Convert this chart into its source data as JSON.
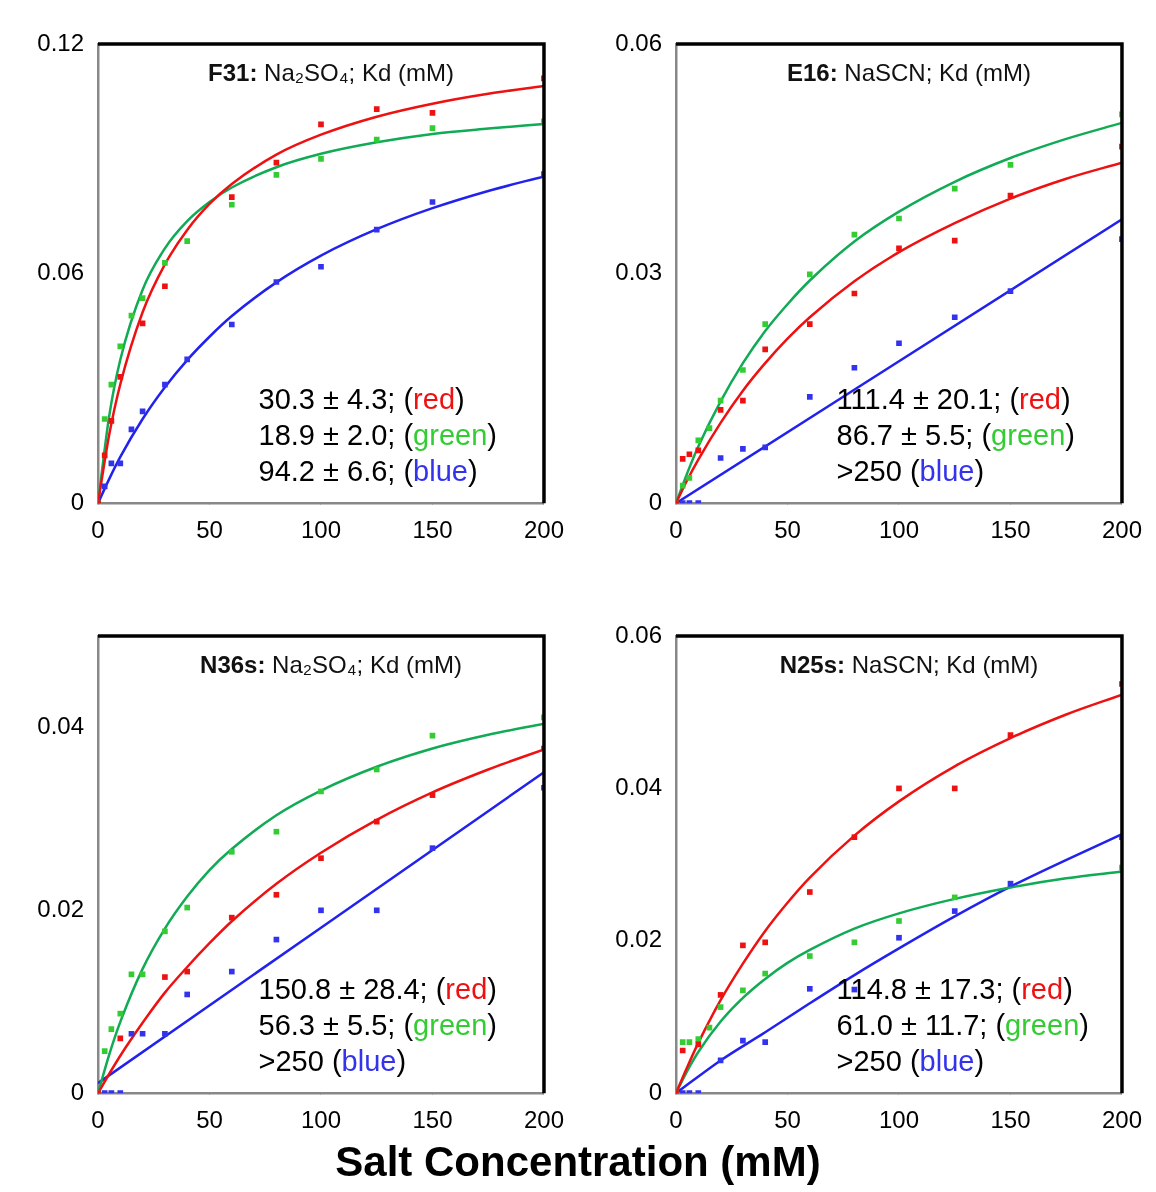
{
  "chart_data": [
    {
      "type": "scatter",
      "title": "F31: Na₂SO₄; Kd (mM)",
      "xlim": [
        0,
        200
      ],
      "xticks": [
        0,
        50,
        100,
        150,
        200
      ],
      "ylim": [
        0,
        0.12
      ],
      "yticks": [
        0,
        0.06,
        0.12
      ],
      "grid": false,
      "legend": false,
      "x": [
        0,
        3,
        6,
        10,
        15,
        20,
        30,
        40,
        60,
        80,
        100,
        125,
        150,
        200
      ],
      "annotations": [
        "30.3 ± 4.3; (red)",
        "18.9 ± 2.0; (green)",
        "94.2 ± 6.6; (blue)"
      ],
      "series": [
        {
          "type": "line",
          "color": "#ee1111",
          "marker": "none",
          "x": [
            0,
            5,
            10,
            20,
            30,
            40,
            50,
            60,
            80,
            100,
            125,
            150,
            175,
            200
          ],
          "values": [
            0,
            0.0178,
            0.0311,
            0.0499,
            0.0624,
            0.0714,
            0.0782,
            0.0834,
            0.0911,
            0.0963,
            0.101,
            0.1044,
            0.107,
            0.109
          ]
        },
        {
          "type": "line",
          "color": "#11aa55",
          "marker": "none",
          "x": [
            0,
            5,
            10,
            20,
            30,
            40,
            50,
            60,
            80,
            100,
            125,
            150,
            175,
            200
          ],
          "values": [
            0,
            0.0227,
            0.0375,
            0.0558,
            0.0666,
            0.0737,
            0.0787,
            0.0825,
            0.0878,
            0.0913,
            0.0943,
            0.0965,
            0.0979,
            0.0991
          ]
        },
        {
          "type": "line",
          "color": "#2222ee",
          "marker": "none",
          "x": [
            0,
            5,
            10,
            20,
            30,
            40,
            50,
            60,
            80,
            100,
            125,
            150,
            175,
            200
          ],
          "values": [
            0,
            0.0063,
            0.0121,
            0.022,
            0.0303,
            0.0374,
            0.0435,
            0.0489,
            0.0577,
            0.0647,
            0.0716,
            0.0771,
            0.0816,
            0.0854
          ]
        },
        {
          "type": "scatter",
          "color": "#ee1111",
          "marker": "square",
          "values": [
            0,
            0.0125,
            0.0215,
            0.033,
            null,
            0.047,
            0.0567,
            null,
            0.08,
            0.089,
            0.099,
            0.103,
            0.102,
            0.111
          ]
        },
        {
          "type": "scatter",
          "color": "#33cc33",
          "marker": "square",
          "values": [
            0,
            0.022,
            0.031,
            0.041,
            0.049,
            0.0536,
            0.0628,
            0.0685,
            0.078,
            0.0858,
            0.09,
            0.095,
            0.098,
            0.0998
          ]
        },
        {
          "type": "scatter",
          "color": "#3333ee",
          "marker": "square",
          "values": [
            0,
            0.0044,
            0.0104,
            0.0104,
            0.0193,
            0.024,
            0.031,
            0.0376,
            0.0467,
            0.0578,
            0.0618,
            0.0715,
            0.0787,
            0.086
          ]
        }
      ]
    },
    {
      "type": "scatter",
      "title": "E16: NaSCN; Kd (mM)",
      "xlim": [
        0,
        200
      ],
      "xticks": [
        0,
        50,
        100,
        150,
        200
      ],
      "ylim": [
        0,
        0.06
      ],
      "yticks": [
        0,
        0.03,
        0.06
      ],
      "grid": false,
      "legend": false,
      "x": [
        0,
        3,
        6,
        10,
        15,
        20,
        30,
        40,
        60,
        80,
        100,
        125,
        150,
        200
      ],
      "annotations": [
        "111.4 ± 20.1; (red)",
        "86.7 ± 5.5; (green)",
        ">250 (blue)"
      ],
      "series": [
        {
          "type": "line",
          "color": "#ee1111",
          "marker": "none",
          "x": [
            0,
            5,
            10,
            20,
            30,
            40,
            50,
            60,
            80,
            100,
            125,
            150,
            175,
            200
          ],
          "values": [
            0,
            0.003,
            0.0057,
            0.0105,
            0.0147,
            0.0183,
            0.0215,
            0.0243,
            0.029,
            0.0328,
            0.0366,
            0.0398,
            0.0424,
            0.0445
          ]
        },
        {
          "type": "line",
          "color": "#11aa55",
          "marker": "none",
          "x": [
            0,
            5,
            10,
            20,
            30,
            40,
            50,
            60,
            80,
            100,
            125,
            150,
            175,
            200
          ],
          "values": [
            0,
            0.0039,
            0.0074,
            0.0133,
            0.0183,
            0.0225,
            0.026,
            0.0291,
            0.0342,
            0.0381,
            0.042,
            0.0451,
            0.0476,
            0.0497
          ]
        },
        {
          "type": "line",
          "color": "#2222ee",
          "marker": "none",
          "x": [
            0,
            200
          ],
          "values": [
            0,
            0.0371
          ]
        },
        {
          "type": "scatter",
          "color": "#ee1111",
          "marker": "square",
          "values": [
            0,
            0.0058,
            0.0064,
            0.0069,
            null,
            0.0122,
            0.0134,
            0.0201,
            0.0234,
            0.0274,
            0.0333,
            0.0343,
            0.0402,
            0.0466
          ]
        },
        {
          "type": "scatter",
          "color": "#33cc33",
          "marker": "square",
          "values": [
            0,
            0.0023,
            0.0033,
            0.0082,
            0.0098,
            0.0134,
            0.0174,
            0.0234,
            0.0299,
            0.0351,
            0.0372,
            0.0411,
            0.0442,
            0.0508
          ]
        },
        {
          "type": "scatter",
          "color": "#3333ee",
          "marker": "square",
          "values": [
            0,
            0,
            0,
            0,
            null,
            0.0059,
            0.0071,
            0.0073,
            0.0139,
            0.0177,
            0.0209,
            0.0243,
            0.0277,
            0.0345
          ]
        }
      ]
    },
    {
      "type": "scatter",
      "title": "N36s: Na₂SO₄; Kd (mM)",
      "xlim": [
        0,
        200
      ],
      "xticks": [
        0,
        50,
        100,
        150,
        200
      ],
      "ylim": [
        0,
        0.05
      ],
      "yticks": [
        0,
        0.02,
        0.04
      ],
      "grid": false,
      "legend": false,
      "x": [
        0,
        3,
        6,
        10,
        15,
        20,
        30,
        40,
        60,
        80,
        100,
        125,
        150,
        200
      ],
      "annotations": [
        "150.8 ± 28.4; (red)",
        "56.3 ± 5.5; (green)",
        ">250 (blue)"
      ],
      "series": [
        {
          "type": "line",
          "color": "#ee1111",
          "marker": "none",
          "x": [
            0,
            5,
            10,
            20,
            30,
            40,
            50,
            60,
            80,
            100,
            125,
            150,
            175,
            200
          ],
          "values": [
            0,
            0.0021,
            0.0041,
            0.0077,
            0.011,
            0.0138,
            0.0164,
            0.0188,
            0.0229,
            0.0263,
            0.0299,
            0.0329,
            0.0354,
            0.0376
          ]
        },
        {
          "type": "line",
          "color": "#11aa55",
          "marker": "none",
          "x": [
            0,
            5,
            10,
            20,
            30,
            40,
            50,
            60,
            80,
            100,
            125,
            150,
            175,
            200
          ],
          "values": [
            0,
            0.0042,
            0.0078,
            0.0136,
            0.018,
            0.0215,
            0.0244,
            0.0267,
            0.0304,
            0.0331,
            0.0357,
            0.0377,
            0.0392,
            0.0404
          ]
        },
        {
          "type": "line",
          "color": "#2222ee",
          "marker": "none",
          "x": [
            0,
            200
          ],
          "values": [
            0.0011,
            0.0351
          ]
        },
        {
          "type": "scatter",
          "color": "#ee1111",
          "marker": "square",
          "values": [
            0,
            null,
            null,
            0.006,
            null,
            null,
            0.0127,
            0.0133,
            0.0192,
            0.0217,
            0.0257,
            0.0297,
            0.0326,
            0.0377
          ]
        },
        {
          "type": "scatter",
          "color": "#33cc33",
          "marker": "square",
          "values": [
            0,
            0.0046,
            0.007,
            0.0087,
            0.013,
            0.013,
            0.0177,
            0.0203,
            0.0264,
            0.0286,
            0.033,
            0.0354,
            0.0391,
            0.0411
          ]
        },
        {
          "type": "scatter",
          "color": "#3333ee",
          "marker": "square",
          "values": [
            0,
            0,
            0,
            0,
            0.0065,
            0.0065,
            0.0065,
            0.0108,
            0.0133,
            0.0168,
            0.02,
            0.02,
            0.0268,
            0.0334
          ]
        }
      ]
    },
    {
      "type": "scatter",
      "title": "N25s: NaSCN; Kd (mM)",
      "xlabel": "Salt Concentration (mM)",
      "xlim": [
        0,
        200
      ],
      "xticks": [
        0,
        50,
        100,
        150,
        200
      ],
      "ylim": [
        0,
        0.06
      ],
      "yticks": [
        0,
        0.02,
        0.04,
        0.06
      ],
      "grid": false,
      "legend": false,
      "x": [
        0,
        3,
        6,
        10,
        15,
        20,
        30,
        40,
        60,
        80,
        100,
        125,
        150,
        200
      ],
      "annotations": [
        "114.8 ± 17.3; (red)",
        "61.0 ± 11.7; (green)",
        ">250 (blue)"
      ],
      "series": [
        {
          "type": "line",
          "color": "#ee1111",
          "marker": "none",
          "x": [
            0,
            5,
            10,
            20,
            30,
            40,
            50,
            60,
            80,
            100,
            125,
            150,
            175,
            200
          ],
          "values": [
            0,
            0.0034,
            0.0066,
            0.0122,
            0.017,
            0.0213,
            0.025,
            0.0283,
            0.0338,
            0.0383,
            0.0429,
            0.0466,
            0.0497,
            0.0523
          ]
        },
        {
          "type": "line",
          "color": "#11aa55",
          "marker": "none",
          "x": [
            0,
            5,
            10,
            20,
            30,
            40,
            50,
            60,
            80,
            100,
            125,
            150,
            175,
            200
          ],
          "values": [
            0,
            0.0029,
            0.0054,
            0.0094,
            0.0125,
            0.015,
            0.0171,
            0.0188,
            0.0216,
            0.0236,
            0.0255,
            0.027,
            0.0282,
            0.0291
          ]
        },
        {
          "type": "line",
          "color": "#2222ee",
          "marker": "none",
          "x": [
            0,
            20,
            40,
            60,
            80,
            100,
            125,
            150,
            200
          ],
          "values": [
            0,
            0.0043,
            0.008,
            0.0118,
            0.0155,
            0.019,
            0.0232,
            0.0271,
            0.034
          ]
        },
        {
          "type": "scatter",
          "color": "#ee1111",
          "marker": "square",
          "values": [
            0,
            0.0056,
            null,
            0.0064,
            null,
            0.0129,
            0.0194,
            0.0198,
            0.0264,
            0.0336,
            0.04,
            0.04,
            0.047,
            0.0537
          ]
        },
        {
          "type": "scatter",
          "color": "#33cc33",
          "marker": "square",
          "values": [
            0,
            0.0067,
            0.0067,
            0.0071,
            0.0086,
            0.0113,
            0.0135,
            0.0157,
            0.018,
            0.0198,
            0.0226,
            0.0257,
            null,
            0.0296
          ]
        },
        {
          "type": "scatter",
          "color": "#3333ee",
          "marker": "square",
          "values": [
            0,
            0,
            0,
            0,
            null,
            0.0043,
            0.0069,
            0.0067,
            0.0137,
            0.0136,
            0.0204,
            0.0239,
            0.0275,
            0.0336
          ]
        }
      ]
    }
  ]
}
